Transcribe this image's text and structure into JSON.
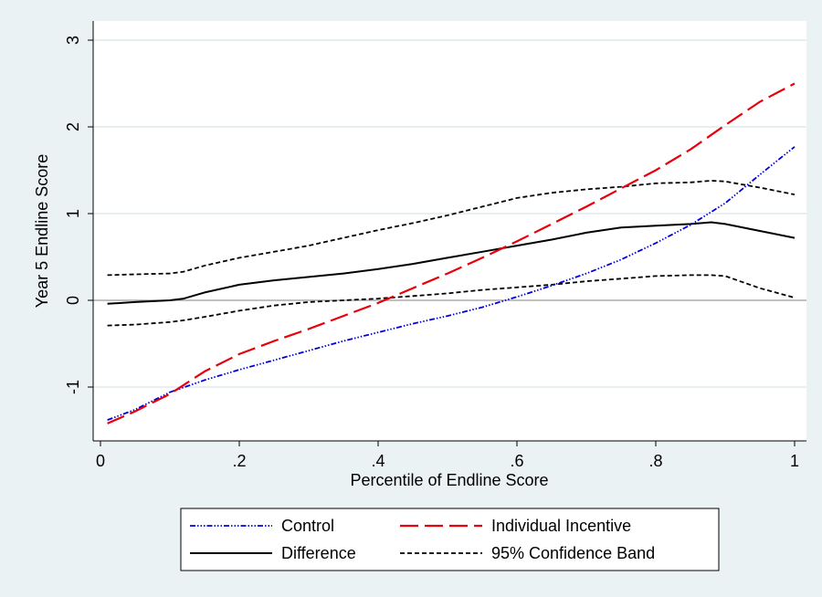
{
  "chart_data": {
    "type": "line",
    "title": "",
    "xlabel": "Percentile of Endline Score",
    "ylabel": "Year 5 Endline Score",
    "xlim": [
      0,
      1.02
    ],
    "ylim": [
      -1.65,
      3.1
    ],
    "x_ticks": [
      {
        "value": 0,
        "label": "0"
      },
      {
        "value": 0.2,
        "label": ".2"
      },
      {
        "value": 0.4,
        "label": ".4"
      },
      {
        "value": 0.6,
        "label": ".6"
      },
      {
        "value": 0.8,
        "label": ".8"
      },
      {
        "value": 1,
        "label": "1"
      }
    ],
    "y_ticks": [
      {
        "value": -1,
        "label": "-1"
      },
      {
        "value": 0,
        "label": "0"
      },
      {
        "value": 1,
        "label": "1"
      },
      {
        "value": 2,
        "label": "2"
      },
      {
        "value": 3,
        "label": "3"
      }
    ],
    "grid": true,
    "reference_line_y": 0,
    "legend_position": "bottom",
    "colors": {
      "background": "#eaf2f3",
      "plot_background": "#ffffff",
      "grid": "#e8eff2",
      "control": "#0000dd",
      "individual_incentive": "#e8000b",
      "difference": "#000000",
      "confidence_band": "#000000",
      "zero_line": "#9a9a9a"
    },
    "series": [
      {
        "name": "Control",
        "style": "dash-dot",
        "x": [
          0.01,
          0.05,
          0.1,
          0.15,
          0.2,
          0.25,
          0.3,
          0.35,
          0.4,
          0.45,
          0.5,
          0.55,
          0.6,
          0.65,
          0.7,
          0.75,
          0.8,
          0.85,
          0.9,
          0.95,
          1.0
        ],
        "y": [
          -1.38,
          -1.26,
          -1.06,
          -0.92,
          -0.8,
          -0.69,
          -0.58,
          -0.47,
          -0.37,
          -0.27,
          -0.18,
          -0.08,
          0.04,
          0.17,
          0.31,
          0.47,
          0.66,
          0.87,
          1.12,
          1.45,
          1.77
        ]
      },
      {
        "name": "Individual Incentive",
        "style": "long-dash",
        "x": [
          0.01,
          0.05,
          0.1,
          0.15,
          0.2,
          0.25,
          0.3,
          0.35,
          0.4,
          0.45,
          0.5,
          0.55,
          0.6,
          0.65,
          0.7,
          0.75,
          0.8,
          0.85,
          0.9,
          0.95,
          1.0
        ],
        "y": [
          -1.42,
          -1.28,
          -1.08,
          -0.82,
          -0.62,
          -0.47,
          -0.33,
          -0.18,
          -0.03,
          0.14,
          0.31,
          0.49,
          0.68,
          0.88,
          1.08,
          1.29,
          1.5,
          1.74,
          2.02,
          2.29,
          2.5
        ]
      },
      {
        "name": "Difference",
        "style": "solid",
        "x": [
          0.01,
          0.05,
          0.1,
          0.12,
          0.15,
          0.2,
          0.25,
          0.3,
          0.35,
          0.4,
          0.45,
          0.5,
          0.55,
          0.6,
          0.65,
          0.7,
          0.75,
          0.8,
          0.85,
          0.88,
          0.9,
          0.95,
          1.0
        ],
        "y": [
          -0.04,
          -0.02,
          0.0,
          0.02,
          0.09,
          0.18,
          0.23,
          0.27,
          0.31,
          0.36,
          0.42,
          0.49,
          0.56,
          0.63,
          0.7,
          0.78,
          0.84,
          0.86,
          0.88,
          0.9,
          0.88,
          0.8,
          0.72
        ]
      },
      {
        "name": "95% Confidence Band",
        "style": "short-dash",
        "x": [
          0.01,
          0.05,
          0.1,
          0.12,
          0.15,
          0.2,
          0.25,
          0.3,
          0.35,
          0.4,
          0.45,
          0.5,
          0.55,
          0.6,
          0.65,
          0.7,
          0.75,
          0.8,
          0.85,
          0.88,
          0.9,
          0.95,
          1.0
        ],
        "y": [
          0.29,
          0.3,
          0.31,
          0.33,
          0.4,
          0.49,
          0.56,
          0.63,
          0.72,
          0.81,
          0.89,
          0.98,
          1.08,
          1.18,
          1.24,
          1.28,
          1.31,
          1.35,
          1.36,
          1.38,
          1.37,
          1.3,
          1.22
        ]
      },
      {
        "name": "",
        "style": "short-dash",
        "x": [
          0.01,
          0.05,
          0.1,
          0.12,
          0.15,
          0.2,
          0.25,
          0.3,
          0.35,
          0.4,
          0.45,
          0.5,
          0.55,
          0.6,
          0.65,
          0.7,
          0.75,
          0.8,
          0.85,
          0.88,
          0.9,
          0.95,
          1.0
        ],
        "y": [
          -0.29,
          -0.28,
          -0.25,
          -0.23,
          -0.19,
          -0.12,
          -0.06,
          -0.02,
          0.0,
          0.02,
          0.05,
          0.08,
          0.12,
          0.15,
          0.18,
          0.22,
          0.25,
          0.28,
          0.29,
          0.29,
          0.28,
          0.14,
          0.03
        ]
      }
    ],
    "legend": [
      {
        "label": "Control",
        "series_index": 0
      },
      {
        "label": "Individual Incentive",
        "series_index": 1
      },
      {
        "label": "Difference",
        "series_index": 2
      },
      {
        "label": "95% Confidence Band",
        "series_index": 3
      }
    ]
  }
}
